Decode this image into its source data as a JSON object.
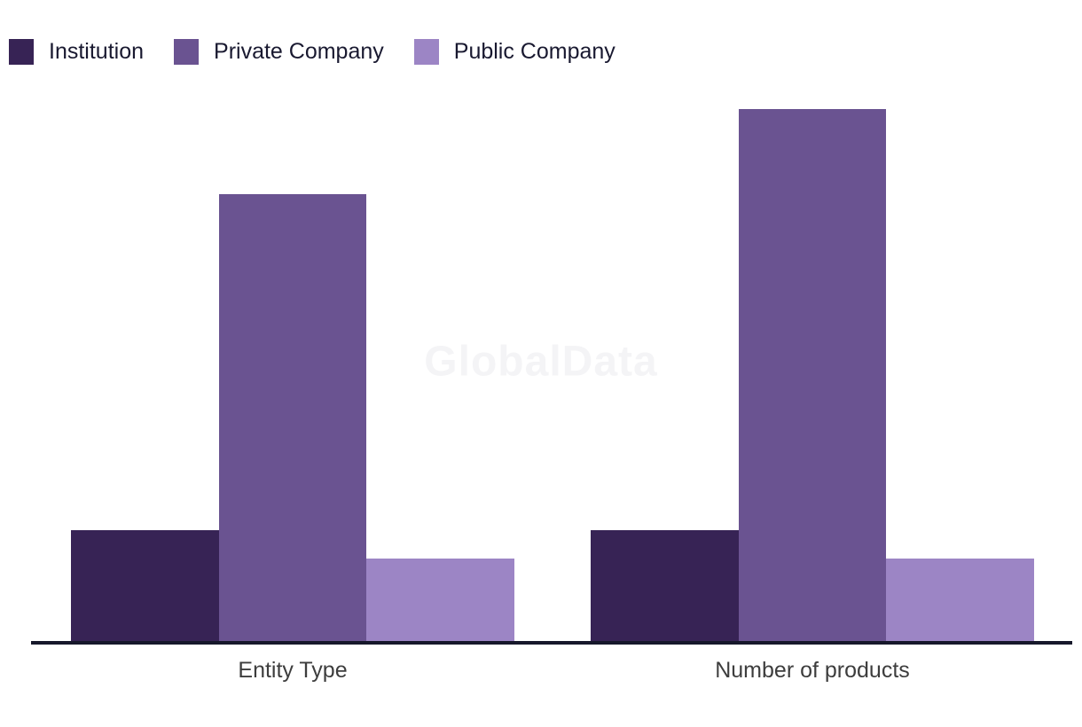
{
  "watermark": "GlobalData",
  "colors": {
    "background": "#FFFFFF",
    "axis_line": "#16182B",
    "legend_text": "#191930",
    "category_label_text": "#3D3D3D",
    "watermark_text": "#F4F4F6"
  },
  "chart_data": {
    "type": "bar",
    "title": "",
    "categories": [
      "Entity Type",
      "Number of products"
    ],
    "series": [
      {
        "name": "Institution",
        "color": "#372355",
        "values": [
          20.8,
          20.8
        ]
      },
      {
        "name": "Private Company",
        "color": "#6A5391",
        "values": [
          84,
          100
        ]
      },
      {
        "name": "Public Company",
        "color": "#9C85C5",
        "values": [
          15.5,
          15.5
        ]
      }
    ],
    "ylim": [
      0,
      100
    ],
    "units": "percent_of_tallest_bar",
    "value_axis_visible": false,
    "data_labels_visible": false,
    "grid": false,
    "legend_position": "top-left"
  }
}
